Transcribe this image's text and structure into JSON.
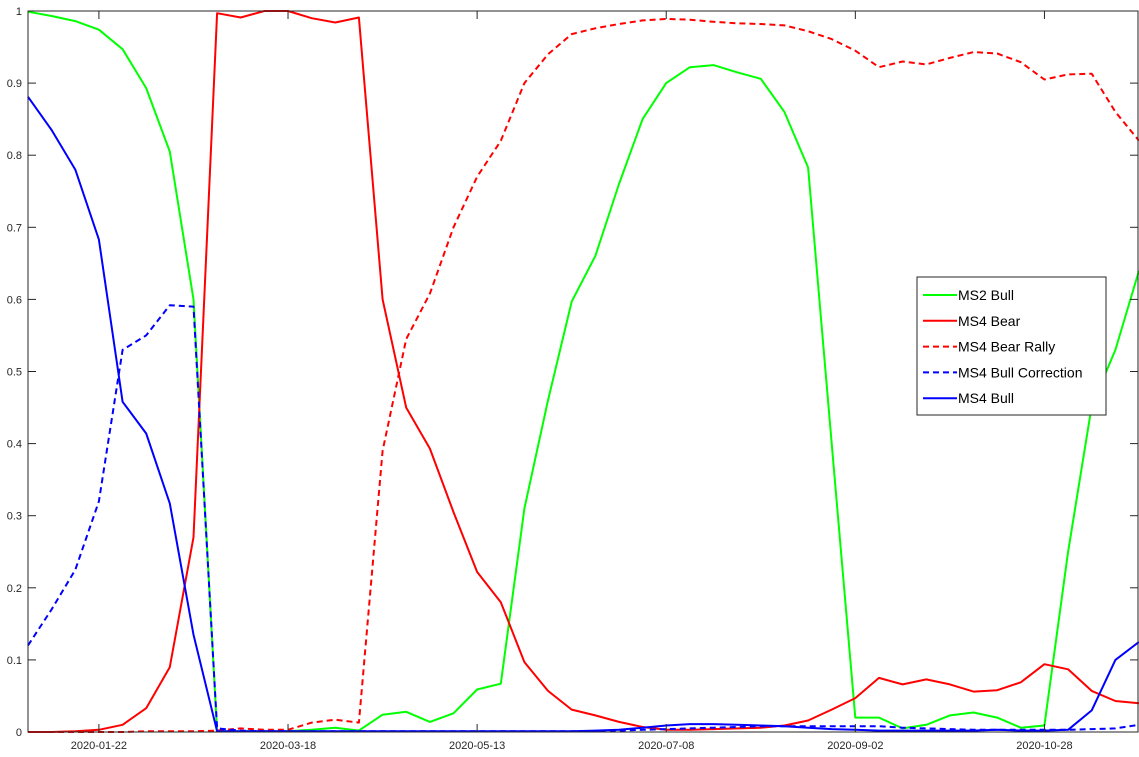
{
  "chart_data": {
    "type": "line",
    "title": "",
    "xlabel": "",
    "ylabel": "",
    "x_ticks": [
      "2020-01-22",
      "2020-03-18",
      "2020-05-13",
      "2020-07-08",
      "2020-09-02",
      "2020-10-28"
    ],
    "ylim": [
      0,
      1
    ],
    "y_ticks": [
      "0",
      "0.1",
      "0.2",
      "0.3",
      "0.4",
      "0.5",
      "0.6",
      "0.7",
      "0.8",
      "0.9",
      "1"
    ],
    "grid": false,
    "legend_position": "right",
    "x_dates": [
      "2020-01-01",
      "2020-01-08",
      "2020-01-15",
      "2020-01-22",
      "2020-01-29",
      "2020-02-05",
      "2020-02-12",
      "2020-02-19",
      "2020-02-26",
      "2020-03-04",
      "2020-03-11",
      "2020-03-18",
      "2020-03-25",
      "2020-04-01",
      "2020-04-08",
      "2020-04-15",
      "2020-04-22",
      "2020-04-29",
      "2020-05-06",
      "2020-05-13",
      "2020-05-20",
      "2020-05-27",
      "2020-06-03",
      "2020-06-10",
      "2020-06-17",
      "2020-06-24",
      "2020-07-01",
      "2020-07-08",
      "2020-07-15",
      "2020-07-22",
      "2020-07-29",
      "2020-08-05",
      "2020-08-12",
      "2020-08-19",
      "2020-08-26",
      "2020-09-02",
      "2020-09-09",
      "2020-09-16",
      "2020-09-23",
      "2020-09-30",
      "2020-10-07",
      "2020-10-14",
      "2020-10-21",
      "2020-10-28",
      "2020-11-04",
      "2020-11-11",
      "2020-11-18",
      "2020-11-25"
    ],
    "series": [
      {
        "name": "MS2 Bull",
        "color": "#00ff00",
        "dash": false,
        "values": [
          0.999,
          0.993,
          0.986,
          0.974,
          0.947,
          0.893,
          0.805,
          0.6,
          0.001,
          0.001,
          0.001,
          0.001,
          0.003,
          0.006,
          0.002,
          0.024,
          0.028,
          0.014,
          0.026,
          0.059,
          0.067,
          0.31,
          0.46,
          0.597,
          0.66,
          0.76,
          0.85,
          0.9,
          0.922,
          0.925,
          0.915,
          0.906,
          0.86,
          0.783,
          0.4,
          0.02,
          0.02,
          0.005,
          0.01,
          0.023,
          0.027,
          0.02,
          0.006,
          0.009,
          0.25,
          0.452,
          0.53,
          0.64
        ]
      },
      {
        "name": "MS4 Bear",
        "color": "#ff0000",
        "dash": false,
        "values": [
          0.0,
          0.0,
          0.001,
          0.003,
          0.01,
          0.033,
          0.09,
          0.27,
          0.997,
          0.991,
          1.0,
          1.0,
          0.99,
          0.984,
          0.991,
          0.6,
          0.45,
          0.393,
          0.305,
          0.222,
          0.18,
          0.097,
          0.057,
          0.031,
          0.023,
          0.014,
          0.007,
          0.003,
          0.003,
          0.004,
          0.005,
          0.006,
          0.009,
          0.016,
          0.031,
          0.047,
          0.075,
          0.066,
          0.073,
          0.066,
          0.056,
          0.058,
          0.069,
          0.094,
          0.087,
          0.057,
          0.043,
          0.04
        ]
      },
      {
        "name": "MS4 Bear Rally",
        "color": "#ff0000",
        "dash": true,
        "values": [
          0.0,
          0.0,
          0.0,
          0.0,
          0.0,
          0.001,
          0.001,
          0.001,
          0.002,
          0.005,
          0.003,
          0.003,
          0.013,
          0.017,
          0.013,
          0.39,
          0.545,
          0.608,
          0.7,
          0.77,
          0.82,
          0.9,
          0.94,
          0.968,
          0.976,
          0.982,
          0.987,
          0.989,
          0.988,
          0.985,
          0.983,
          0.982,
          0.98,
          0.972,
          0.961,
          0.945,
          0.922,
          0.93,
          0.926,
          0.935,
          0.943,
          0.941,
          0.929,
          0.905,
          0.912,
          0.913,
          0.86,
          0.82
        ]
      },
      {
        "name": "MS4 Bull Correction",
        "color": "#0000ff",
        "dash": true,
        "values": [
          0.12,
          0.17,
          0.225,
          0.32,
          0.53,
          0.55,
          0.592,
          0.59,
          0.005,
          0.002,
          0.001,
          0.001,
          0.001,
          0.001,
          0.001,
          0.001,
          0.001,
          0.001,
          0.001,
          0.001,
          0.001,
          0.001,
          0.001,
          0.001,
          0.001,
          0.002,
          0.003,
          0.004,
          0.005,
          0.006,
          0.007,
          0.008,
          0.008,
          0.008,
          0.008,
          0.008,
          0.008,
          0.006,
          0.005,
          0.004,
          0.003,
          0.003,
          0.003,
          0.003,
          0.003,
          0.004,
          0.005,
          0.01
        ]
      },
      {
        "name": "MS4 Bull",
        "color": "#0000ff",
        "dash": false,
        "values": [
          0.881,
          0.835,
          0.78,
          0.683,
          0.458,
          0.414,
          0.317,
          0.135,
          0.001,
          0.001,
          0.001,
          0.001,
          0.001,
          0.001,
          0.001,
          0.001,
          0.001,
          0.001,
          0.001,
          0.001,
          0.001,
          0.001,
          0.001,
          0.001,
          0.002,
          0.003,
          0.006,
          0.009,
          0.011,
          0.011,
          0.01,
          0.009,
          0.008,
          0.006,
          0.004,
          0.003,
          0.002,
          0.002,
          0.002,
          0.002,
          0.002,
          0.003,
          0.002,
          0.002,
          0.003,
          0.03,
          0.1,
          0.125
        ]
      }
    ]
  }
}
